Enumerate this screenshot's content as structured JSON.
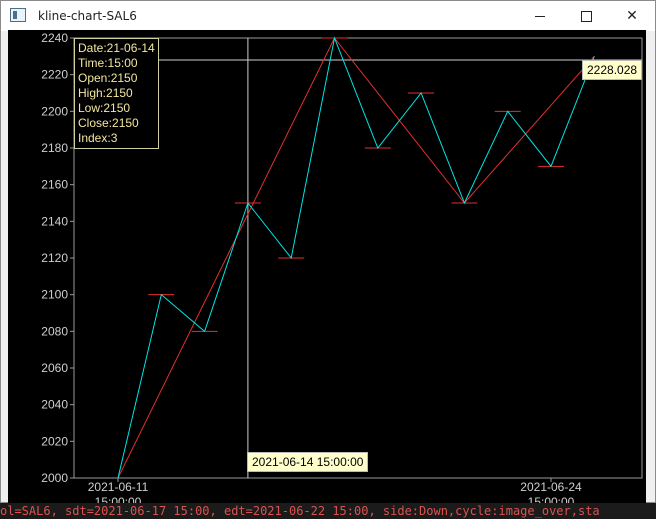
{
  "window": {
    "title": "kline-chart-SAL6"
  },
  "terminal": {
    "bottom_line": "ol=SAL6, sdt=2021-06-17 15:00, edt=2021-06-22 15:00, side:Down,cycle:image_over,sta"
  },
  "tooltip": {
    "date": "Date:21-06-14",
    "time": "Time:15:00",
    "open": "Open:2150",
    "high": "High:2150",
    "low": "Low:2150",
    "close": "Close:2150",
    "index": "Index:3"
  },
  "crosshair": {
    "price_label": "2228.028",
    "time_label": "2021-06-14 15:00:00"
  },
  "chart_data": {
    "type": "line",
    "x": [
      0,
      1,
      2,
      3,
      4,
      5,
      6,
      7,
      8,
      9,
      10,
      11
    ],
    "x_tick_labels": [
      {
        "index": 0,
        "date": "2021-06-11",
        "time": "15:00:00"
      },
      {
        "index": 10,
        "date": "2021-06-24",
        "time": "15:00:00"
      }
    ],
    "series": [
      {
        "values": [
          2000,
          2100,
          2080,
          2150,
          2120,
          2240,
          2180,
          2210,
          2150,
          2200,
          2170,
          2230
        ],
        "color": "#00e5e5"
      },
      {
        "points": [
          [
            0,
            2000
          ],
          [
            5,
            2240
          ],
          [
            8,
            2150
          ],
          [
            11,
            2230
          ]
        ],
        "color": "#e03030"
      }
    ],
    "markers": [
      {
        "index": 1,
        "value": 2100
      },
      {
        "index": 2,
        "value": 2080
      },
      {
        "index": 3,
        "value": 2150
      },
      {
        "index": 4,
        "value": 2120
      },
      {
        "index": 5,
        "value": 2240
      },
      {
        "index": 6,
        "value": 2180
      },
      {
        "index": 7,
        "value": 2210
      },
      {
        "index": 8,
        "value": 2150
      },
      {
        "index": 9,
        "value": 2200
      },
      {
        "index": 10,
        "value": 2170
      }
    ],
    "ylim": [
      2000,
      2240
    ],
    "y_ticks": [
      2000,
      2020,
      2040,
      2060,
      2080,
      2100,
      2120,
      2140,
      2160,
      2180,
      2200,
      2220,
      2240
    ],
    "crosshair": {
      "index": 3,
      "value": 2228.028
    },
    "grid": false
  }
}
